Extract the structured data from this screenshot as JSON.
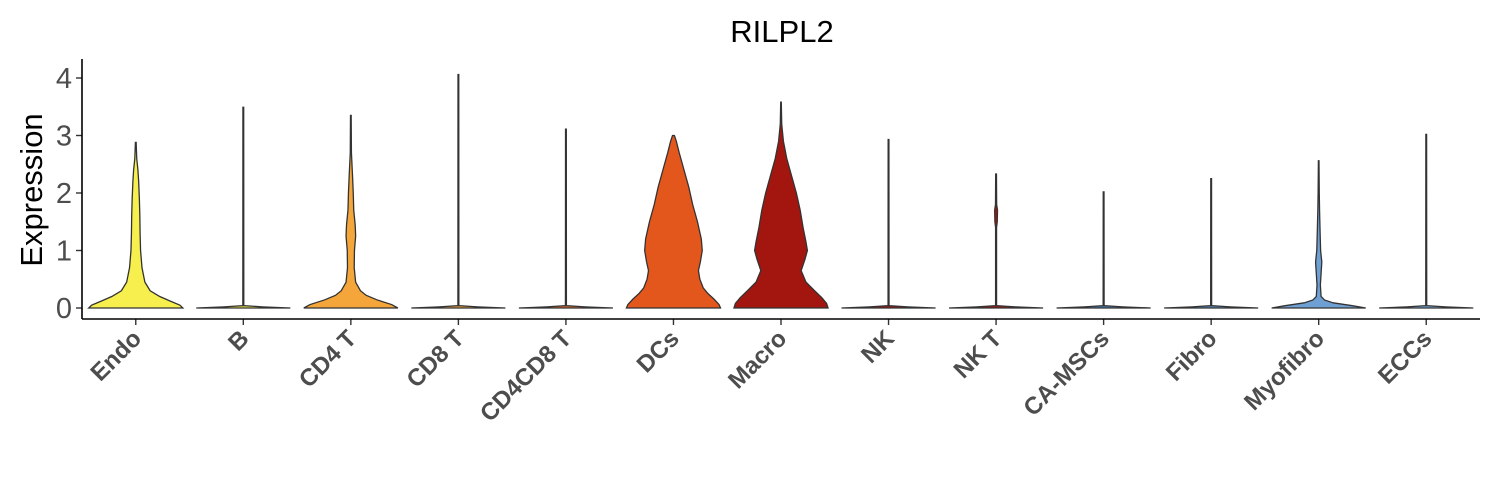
{
  "chart_data": {
    "type": "violin",
    "title": "RILPL2",
    "xlabel": "",
    "ylabel": "Expression",
    "ylim": [
      -0.2,
      4.3
    ],
    "yticks": [
      0,
      1,
      2,
      3,
      4
    ],
    "grid": false,
    "legend": "none",
    "categories": [
      "Endo",
      "B",
      "CD4 T",
      "CD8 T",
      "CD4CD8 T",
      "DCs",
      "Macro",
      "NK",
      "NK T",
      "CA-MSCs",
      "Fibro",
      "Myofibro",
      "ECCs"
    ],
    "colors": [
      "#f6ef4e",
      "#f6ef4e",
      "#f4a63a",
      "#f4a63a",
      "#ea6b2a",
      "#e4571c",
      "#a3160f",
      "#a3160f",
      "#a3160f",
      "#4e7fb8",
      "#5a8fc4",
      "#6fa0d4",
      "#7ab0e0"
    ],
    "series": [
      {
        "category": "Endo",
        "max": 2.88,
        "profile": [
          [
            0,
            0.98
          ],
          [
            0.05,
            0.92
          ],
          [
            0.12,
            0.72
          ],
          [
            0.2,
            0.5
          ],
          [
            0.3,
            0.3
          ],
          [
            0.45,
            0.19
          ],
          [
            0.7,
            0.13
          ],
          [
            1.0,
            0.1
          ],
          [
            1.3,
            0.09
          ],
          [
            1.6,
            0.085
          ],
          [
            1.9,
            0.075
          ],
          [
            2.2,
            0.06
          ],
          [
            2.4,
            0.045
          ],
          [
            2.6,
            0.02
          ],
          [
            2.88,
            0.008
          ]
        ]
      },
      {
        "category": "B",
        "max": 3.49,
        "profile": [
          [
            0,
            0.98
          ],
          [
            0.02,
            0.4
          ],
          [
            0.04,
            0.01
          ],
          [
            3.49,
            0.008
          ]
        ]
      },
      {
        "category": "CD4 T",
        "max": 3.35,
        "profile": [
          [
            0,
            0.98
          ],
          [
            0.06,
            0.85
          ],
          [
            0.14,
            0.55
          ],
          [
            0.22,
            0.32
          ],
          [
            0.3,
            0.2
          ],
          [
            0.45,
            0.1
          ],
          [
            0.7,
            0.07
          ],
          [
            1.0,
            0.075
          ],
          [
            1.25,
            0.1
          ],
          [
            1.45,
            0.09
          ],
          [
            1.7,
            0.06
          ],
          [
            2.0,
            0.05
          ],
          [
            2.3,
            0.035
          ],
          [
            2.7,
            0.012
          ],
          [
            3.35,
            0.007
          ]
        ]
      },
      {
        "category": "CD8 T",
        "max": 4.06,
        "profile": [
          [
            0,
            0.98
          ],
          [
            0.02,
            0.4
          ],
          [
            0.04,
            0.01
          ],
          [
            4.06,
            0.008
          ]
        ]
      },
      {
        "category": "CD4CD8 T",
        "max": 3.11,
        "profile": [
          [
            0,
            0.98
          ],
          [
            0.02,
            0.4
          ],
          [
            0.04,
            0.01
          ],
          [
            3.11,
            0.008
          ]
        ]
      },
      {
        "category": "DCs",
        "max": 3.0,
        "profile": [
          [
            0,
            0.98
          ],
          [
            0.06,
            0.95
          ],
          [
            0.15,
            0.85
          ],
          [
            0.25,
            0.72
          ],
          [
            0.35,
            0.62
          ],
          [
            0.5,
            0.55
          ],
          [
            0.65,
            0.52
          ],
          [
            0.8,
            0.56
          ],
          [
            1.0,
            0.6
          ],
          [
            1.2,
            0.58
          ],
          [
            1.5,
            0.5
          ],
          [
            1.8,
            0.4
          ],
          [
            2.1,
            0.32
          ],
          [
            2.4,
            0.22
          ],
          [
            2.7,
            0.12
          ],
          [
            2.9,
            0.06
          ],
          [
            3.0,
            0.02
          ]
        ]
      },
      {
        "category": "Macro",
        "max": 3.58,
        "profile": [
          [
            0,
            0.98
          ],
          [
            0.08,
            0.95
          ],
          [
            0.18,
            0.85
          ],
          [
            0.3,
            0.7
          ],
          [
            0.45,
            0.52
          ],
          [
            0.65,
            0.42
          ],
          [
            0.85,
            0.5
          ],
          [
            1.0,
            0.55
          ],
          [
            1.15,
            0.52
          ],
          [
            1.4,
            0.46
          ],
          [
            1.7,
            0.4
          ],
          [
            2.0,
            0.32
          ],
          [
            2.3,
            0.22
          ],
          [
            2.6,
            0.12
          ],
          [
            2.9,
            0.05
          ],
          [
            3.2,
            0.015
          ],
          [
            3.58,
            0.006
          ]
        ]
      },
      {
        "category": "NK",
        "max": 2.93,
        "profile": [
          [
            0,
            0.98
          ],
          [
            0.02,
            0.4
          ],
          [
            0.04,
            0.01
          ],
          [
            2.93,
            0.008
          ]
        ]
      },
      {
        "category": "NK T",
        "max": 2.33,
        "profile": [
          [
            0,
            0.98
          ],
          [
            0.02,
            0.4
          ],
          [
            0.04,
            0.01
          ],
          [
            1.4,
            0.01
          ],
          [
            1.5,
            0.025
          ],
          [
            1.7,
            0.03
          ],
          [
            1.8,
            0.012
          ],
          [
            2.33,
            0.008
          ]
        ]
      },
      {
        "category": "CA-MSCs",
        "max": 2.02,
        "profile": [
          [
            0,
            0.98
          ],
          [
            0.02,
            0.4
          ],
          [
            0.04,
            0.01
          ],
          [
            2.02,
            0.008
          ]
        ]
      },
      {
        "category": "Fibro",
        "max": 2.25,
        "profile": [
          [
            0,
            0.98
          ],
          [
            0.02,
            0.4
          ],
          [
            0.04,
            0.01
          ],
          [
            2.25,
            0.008
          ]
        ]
      },
      {
        "category": "Myofibro",
        "max": 2.56,
        "profile": [
          [
            0,
            0.98
          ],
          [
            0.04,
            0.7
          ],
          [
            0.09,
            0.3
          ],
          [
            0.14,
            0.12
          ],
          [
            0.2,
            0.05
          ],
          [
            0.4,
            0.035
          ],
          [
            0.6,
            0.05
          ],
          [
            0.8,
            0.065
          ],
          [
            1.0,
            0.04
          ],
          [
            1.3,
            0.03
          ],
          [
            1.7,
            0.018
          ],
          [
            2.0,
            0.012
          ],
          [
            2.56,
            0.006
          ]
        ]
      },
      {
        "category": "ECCs",
        "max": 3.02,
        "profile": [
          [
            0,
            0.98
          ],
          [
            0.02,
            0.4
          ],
          [
            0.04,
            0.01
          ],
          [
            3.02,
            0.008
          ]
        ]
      }
    ]
  }
}
